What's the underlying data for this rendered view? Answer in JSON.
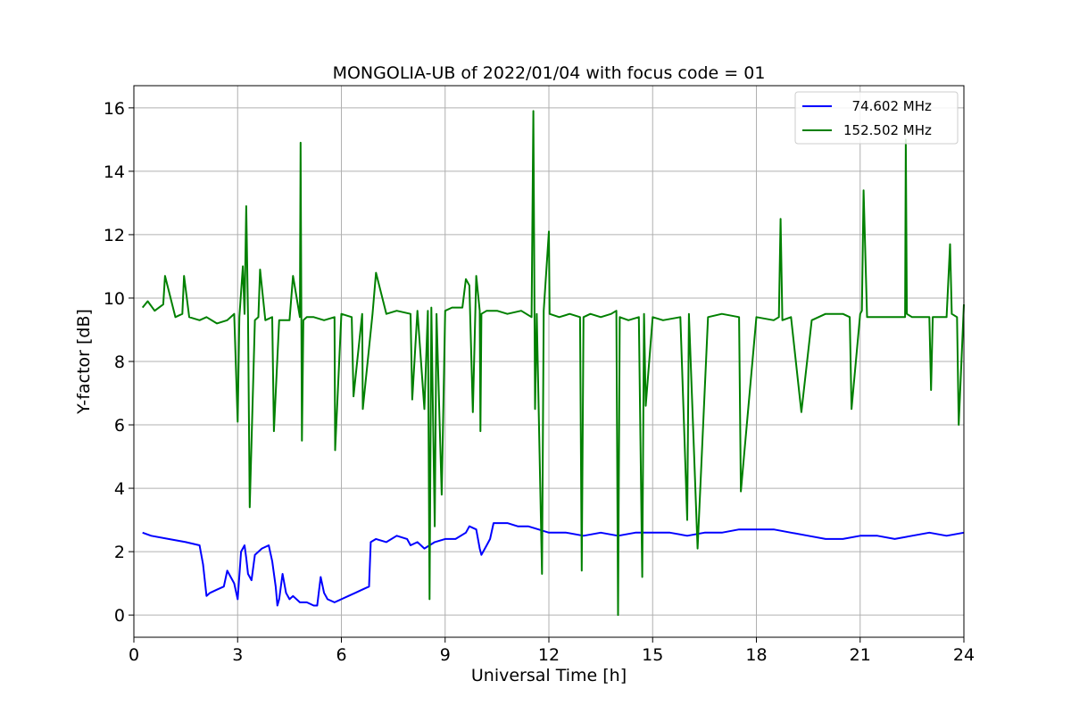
{
  "chart_data": {
    "type": "line",
    "title": "MONGOLIA-UB of 2022/01/04 with focus code = 01",
    "xlabel": "Universal Time [h]",
    "ylabel": "Y-factor [dB]",
    "xlim": [
      0,
      24
    ],
    "ylim": [
      -0.7,
      16.7
    ],
    "xticks": [
      0,
      3,
      6,
      9,
      12,
      15,
      18,
      21,
      24
    ],
    "yticks": [
      0,
      2,
      4,
      6,
      8,
      10,
      12,
      14,
      16
    ],
    "grid": true,
    "legend_position": "upper-right",
    "series": [
      {
        "name": "  74.602 MHz",
        "color": "#0000ff",
        "x": [
          0.25,
          0.5,
          1.0,
          1.5,
          1.9,
          2.0,
          2.1,
          2.2,
          2.4,
          2.6,
          2.7,
          2.9,
          3.0,
          3.1,
          3.2,
          3.25,
          3.3,
          3.4,
          3.5,
          3.7,
          3.9,
          4.0,
          4.1,
          4.15,
          4.2,
          4.3,
          4.4,
          4.5,
          4.6,
          4.8,
          5.0,
          5.2,
          5.3,
          5.4,
          5.5,
          5.6,
          5.8,
          6.0,
          6.2,
          6.4,
          6.6,
          6.8,
          6.85,
          7.0,
          7.3,
          7.6,
          7.9,
          8.0,
          8.2,
          8.4,
          8.7,
          9.0,
          9.3,
          9.6,
          9.7,
          9.9,
          10.0,
          10.05,
          10.2,
          10.3,
          10.4,
          10.5,
          10.8,
          11.1,
          11.4,
          11.7,
          12.0,
          12.5,
          13.0,
          13.5,
          14.0,
          14.5,
          15.0,
          15.5,
          16.0,
          16.5,
          17.0,
          17.5,
          18.0,
          18.5,
          19.0,
          19.5,
          20.0,
          20.5,
          21.0,
          21.5,
          22.0,
          22.5,
          23.0,
          23.5,
          24.0
        ],
        "y": [
          2.6,
          2.5,
          2.4,
          2.3,
          2.2,
          1.6,
          0.6,
          0.7,
          0.8,
          0.9,
          1.4,
          1.0,
          0.5,
          2.0,
          2.2,
          1.8,
          1.3,
          1.1,
          1.9,
          2.1,
          2.2,
          1.7,
          0.9,
          0.3,
          0.5,
          1.3,
          0.7,
          0.5,
          0.6,
          0.4,
          0.4,
          0.3,
          0.3,
          1.2,
          0.7,
          0.5,
          0.4,
          0.5,
          0.6,
          0.7,
          0.8,
          0.9,
          2.3,
          2.4,
          2.3,
          2.5,
          2.4,
          2.2,
          2.3,
          2.1,
          2.3,
          2.4,
          2.4,
          2.6,
          2.8,
          2.7,
          2.1,
          1.9,
          2.2,
          2.4,
          2.9,
          2.9,
          2.9,
          2.8,
          2.8,
          2.7,
          2.6,
          2.6,
          2.5,
          2.6,
          2.5,
          2.6,
          2.6,
          2.6,
          2.5,
          2.6,
          2.6,
          2.7,
          2.7,
          2.7,
          2.6,
          2.5,
          2.4,
          2.4,
          2.5,
          2.5,
          2.4,
          2.5,
          2.6,
          2.5,
          2.6
        ]
      },
      {
        "name": "152.502 MHz",
        "color": "#008000",
        "x": [
          0.25,
          0.4,
          0.6,
          0.85,
          0.9,
          1.2,
          1.4,
          1.45,
          1.6,
          1.9,
          2.1,
          2.4,
          2.7,
          2.9,
          3.0,
          3.05,
          3.15,
          3.2,
          3.25,
          3.3,
          3.35,
          3.5,
          3.6,
          3.65,
          3.8,
          4.0,
          4.05,
          4.2,
          4.5,
          4.6,
          4.8,
          4.82,
          4.86,
          4.9,
          5.0,
          5.2,
          5.5,
          5.8,
          5.82,
          6.0,
          6.3,
          6.35,
          6.6,
          6.62,
          6.9,
          7.0,
          7.3,
          7.6,
          8.0,
          8.05,
          8.2,
          8.4,
          8.5,
          8.55,
          8.6,
          8.7,
          8.75,
          8.9,
          9.0,
          9.2,
          9.5,
          9.6,
          9.7,
          9.8,
          9.9,
          10.0,
          10.02,
          10.05,
          10.2,
          10.5,
          10.8,
          11.2,
          11.5,
          11.55,
          11.6,
          11.65,
          11.8,
          11.85,
          12.0,
          12.02,
          12.3,
          12.6,
          12.9,
          12.95,
          13.0,
          13.2,
          13.5,
          13.8,
          13.95,
          14.0,
          14.05,
          14.3,
          14.6,
          14.7,
          14.75,
          14.8,
          15.0,
          15.3,
          15.8,
          16.0,
          16.05,
          16.3,
          16.6,
          17.0,
          17.5,
          17.55,
          18.0,
          18.5,
          18.65,
          18.7,
          18.75,
          19.0,
          19.3,
          19.6,
          20.0,
          20.5,
          20.7,
          20.75,
          21.0,
          21.05,
          21.1,
          21.2,
          21.5,
          22.0,
          22.3,
          22.32,
          22.35,
          22.5,
          23.0,
          23.05,
          23.1,
          23.5,
          23.6,
          23.65,
          23.8,
          23.85,
          24.0
        ],
        "y": [
          9.7,
          9.9,
          9.6,
          9.8,
          10.7,
          9.4,
          9.5,
          10.7,
          9.4,
          9.3,
          9.4,
          9.2,
          9.3,
          9.5,
          6.1,
          9.4,
          11.0,
          9.5,
          12.9,
          9.4,
          3.4,
          9.3,
          9.4,
          10.9,
          9.3,
          9.4,
          5.8,
          9.3,
          9.3,
          10.7,
          9.4,
          14.9,
          5.5,
          9.3,
          9.4,
          9.4,
          9.3,
          9.4,
          5.2,
          9.5,
          9.4,
          6.9,
          9.5,
          6.5,
          9.5,
          10.8,
          9.5,
          9.6,
          9.5,
          6.8,
          9.6,
          6.5,
          9.6,
          0.5,
          9.7,
          2.8,
          9.5,
          3.8,
          9.6,
          9.7,
          9.7,
          10.6,
          10.4,
          6.4,
          10.7,
          9.6,
          5.8,
          9.5,
          9.6,
          9.6,
          9.5,
          9.6,
          9.4,
          15.9,
          6.5,
          9.5,
          1.3,
          9.6,
          12.1,
          9.5,
          9.4,
          9.5,
          9.4,
          1.4,
          9.4,
          9.5,
          9.4,
          9.5,
          9.6,
          0.0,
          9.4,
          9.3,
          9.4,
          1.2,
          9.5,
          6.6,
          9.4,
          9.3,
          9.4,
          3.0,
          9.5,
          2.1,
          9.4,
          9.5,
          9.4,
          3.9,
          9.4,
          9.3,
          9.4,
          12.5,
          9.3,
          9.4,
          6.4,
          9.3,
          9.5,
          9.5,
          9.4,
          6.5,
          9.5,
          9.6,
          13.4,
          9.4,
          9.4,
          9.4,
          9.4,
          15.0,
          9.5,
          9.4,
          9.4,
          7.1,
          9.4,
          9.4,
          11.7,
          9.5,
          9.4,
          6.0,
          9.8
        ]
      }
    ]
  }
}
